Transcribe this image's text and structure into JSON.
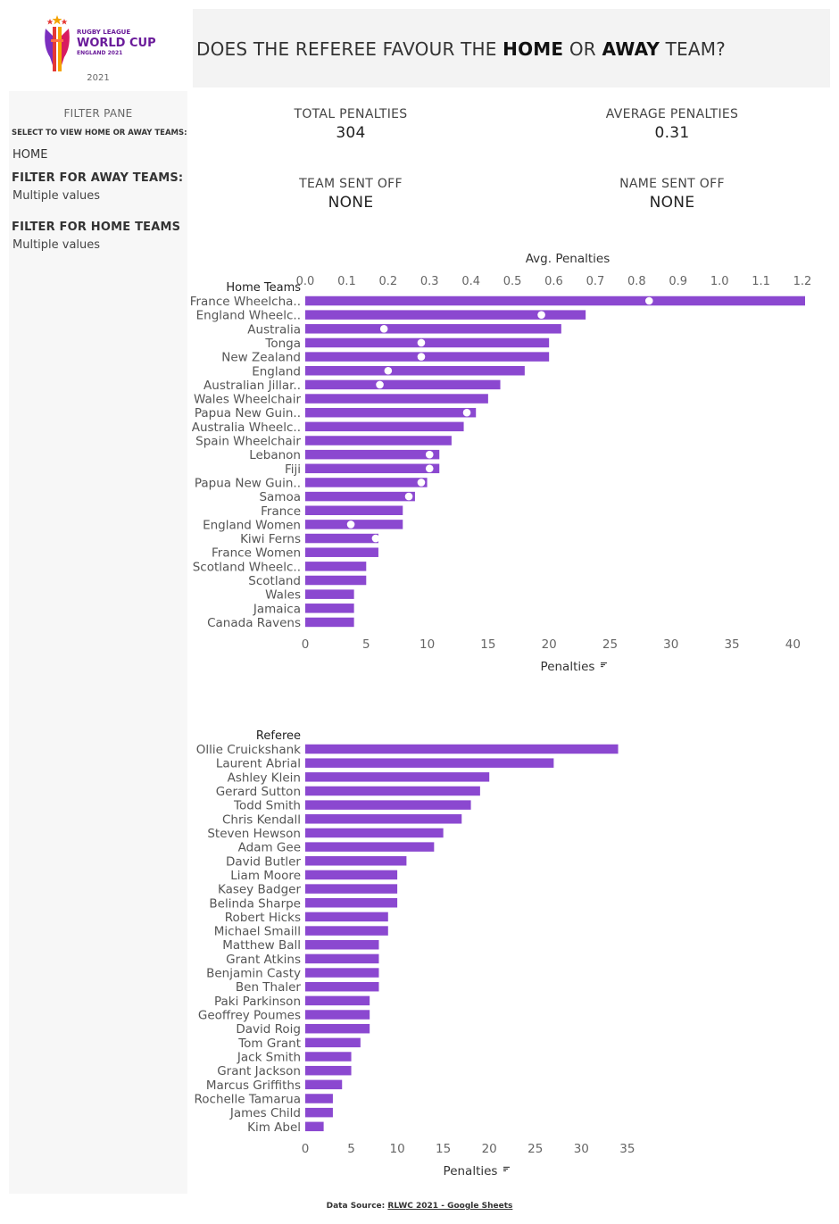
{
  "sidebar": {
    "logo": {
      "line1": "RUGBY LEAGUE",
      "line2": "WORLD CUP",
      "line3": "ENGLAND 2021",
      "year": "2021"
    },
    "pane_title": "FILTER PANE",
    "select_label": "SELECT TO VIEW HOME OR AWAY TEAMS:",
    "select_value": "HOME",
    "away_filter_label": "FILTER FOR AWAY TEAMS:",
    "away_filter_value": "Multiple values",
    "home_filter_label": "FILTER FOR HOME TEAMS",
    "home_filter_value": "Multiple values"
  },
  "header": {
    "title_part1": "DOES THE REFEREE FAVOUR THE ",
    "title_bold1": "HOME",
    "title_part2": " OR ",
    "title_bold2": "AWAY",
    "title_part3": " TEAM?"
  },
  "kpis": {
    "total_label": "TOTAL PENALTIES",
    "total_value": "304",
    "average_label": "AVERAGE PENALTIES",
    "average_value": "0.31",
    "team_off_label": "TEAM SENT OFF",
    "team_off_value": "NONE",
    "name_off_label": "NAME SENT OFF",
    "name_off_value": "NONE"
  },
  "colors": {
    "bar": "#8b48d0",
    "dot": "#ffffff",
    "axis_text": "#666666"
  },
  "footer": {
    "prefix": "Data Source: ",
    "link": "RLWC 2021 - Google Sheets"
  },
  "chart_data": [
    {
      "type": "bar",
      "orientation": "horizontal",
      "row_header": "Home Teams",
      "xlabel": "Penalties",
      "x2label": "Avg. Penalties",
      "xticks": [
        0,
        5,
        10,
        15,
        20,
        25,
        30,
        35,
        40
      ],
      "x2ticks": [
        "0.0",
        "0.1",
        "0.2",
        "0.3",
        "0.4",
        "0.5",
        "0.6",
        "0.7",
        "0.8",
        "0.9",
        "1.0",
        "1.1",
        "1.2"
      ],
      "xlim": [
        0,
        41
      ],
      "x2lim": [
        0,
        1.2
      ],
      "categories": [
        "France Wheelcha..",
        "England Wheelc..",
        "Australia",
        "Tonga",
        "New Zealand",
        "England",
        "Australian Jillar..",
        "Wales Wheelchair",
        "Papua New Guin..",
        "Australia Wheelc..",
        "Spain Wheelchair",
        "Lebanon",
        "Fiji",
        "Papua New Guin..",
        "Samoa",
        "France",
        "England Women",
        "Kiwi Ferns",
        "France Women",
        "Scotland Wheelc..",
        "Scotland",
        "Wales",
        "Jamaica",
        "Canada Ravens"
      ],
      "series": [
        {
          "name": "Penalties",
          "mark": "bar",
          "values": [
            41,
            23,
            21,
            20,
            20,
            18,
            16,
            15,
            14,
            13,
            12,
            11,
            11,
            10,
            9,
            8,
            8,
            6,
            6,
            5,
            5,
            4,
            4,
            4
          ]
        },
        {
          "name": "Avg. Penalties",
          "mark": "dot",
          "values": [
            0.83,
            0.57,
            0.19,
            0.28,
            0.28,
            0.2,
            0.18,
            null,
            0.39,
            null,
            null,
            0.3,
            0.3,
            0.28,
            0.25,
            null,
            0.11,
            0.17,
            null,
            null,
            null,
            null,
            null,
            null
          ]
        }
      ]
    },
    {
      "type": "bar",
      "orientation": "horizontal",
      "row_header": "Referee",
      "xlabel": "Penalties",
      "xticks": [
        0,
        5,
        10,
        15,
        20,
        25,
        30,
        35
      ],
      "xlim": [
        0,
        35.5
      ],
      "categories": [
        "Ollie Cruickshank",
        "Laurent Abrial",
        "Ashley Klein",
        "Gerard Sutton",
        "Todd Smith",
        "Chris Kendall",
        "Steven Hewson",
        "Adam Gee",
        "David Butler",
        "Liam Moore",
        "Kasey Badger",
        "Belinda Sharpe",
        "Robert Hicks",
        "Michael Smaill",
        "Matthew Ball",
        "Grant Atkins",
        "Benjamin Casty",
        "Ben Thaler",
        "Paki Parkinson",
        "Geoffrey Poumes",
        "David Roig",
        "Tom Grant",
        "Jack Smith",
        "Grant Jackson",
        "Marcus Griffiths",
        "Rochelle Tamarua",
        "James Child",
        "Kim Abel"
      ],
      "series": [
        {
          "name": "Penalties",
          "mark": "bar",
          "values": [
            34,
            27,
            20,
            19,
            18,
            17,
            15,
            14,
            11,
            10,
            10,
            10,
            9,
            9,
            8,
            8,
            8,
            8,
            7,
            7,
            7,
            6,
            5,
            5,
            4,
            3,
            3,
            2
          ]
        }
      ]
    }
  ]
}
